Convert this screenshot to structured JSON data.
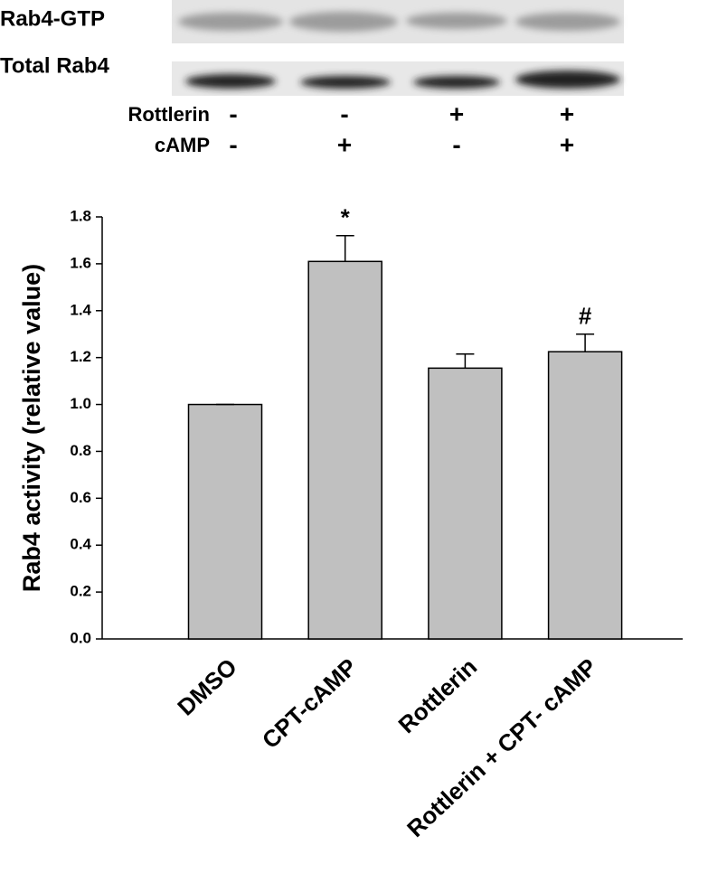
{
  "blot": {
    "rows": [
      "Rab4-GTP",
      "Total Rab4"
    ],
    "conditions": [
      {
        "name": "Rottlerin",
        "signs": [
          "-",
          "-",
          "+",
          "+"
        ]
      },
      {
        "name": "cAMP",
        "signs": [
          "-",
          "+",
          "-",
          "+"
        ]
      }
    ]
  },
  "chart_data": {
    "type": "bar",
    "y_label": "Rab4 activity (relative value)",
    "categories": [
      "DMSO",
      "CPT-cAMP",
      "Rottlerin",
      "Rottlerin + CPT- cAMP"
    ],
    "values": [
      1.0,
      1.61,
      1.155,
      1.225
    ],
    "errors": [
      0,
      0.11,
      0.06,
      0.075
    ],
    "color": "#c0c0c0",
    "annotations": [
      {
        "category": "CPT-cAMP",
        "text": "*"
      },
      {
        "category": "Rottlerin + CPT- cAMP",
        "text": "#"
      }
    ],
    "ylim": [
      0,
      1.8
    ],
    "yticks": [
      {
        "value": 0,
        "label": "0.0"
      },
      0.2,
      0.4,
      0.6,
      0.8,
      {
        "value": 1,
        "label": "1.0"
      },
      1.2,
      1.4,
      1.6,
      1.8
    ]
  }
}
